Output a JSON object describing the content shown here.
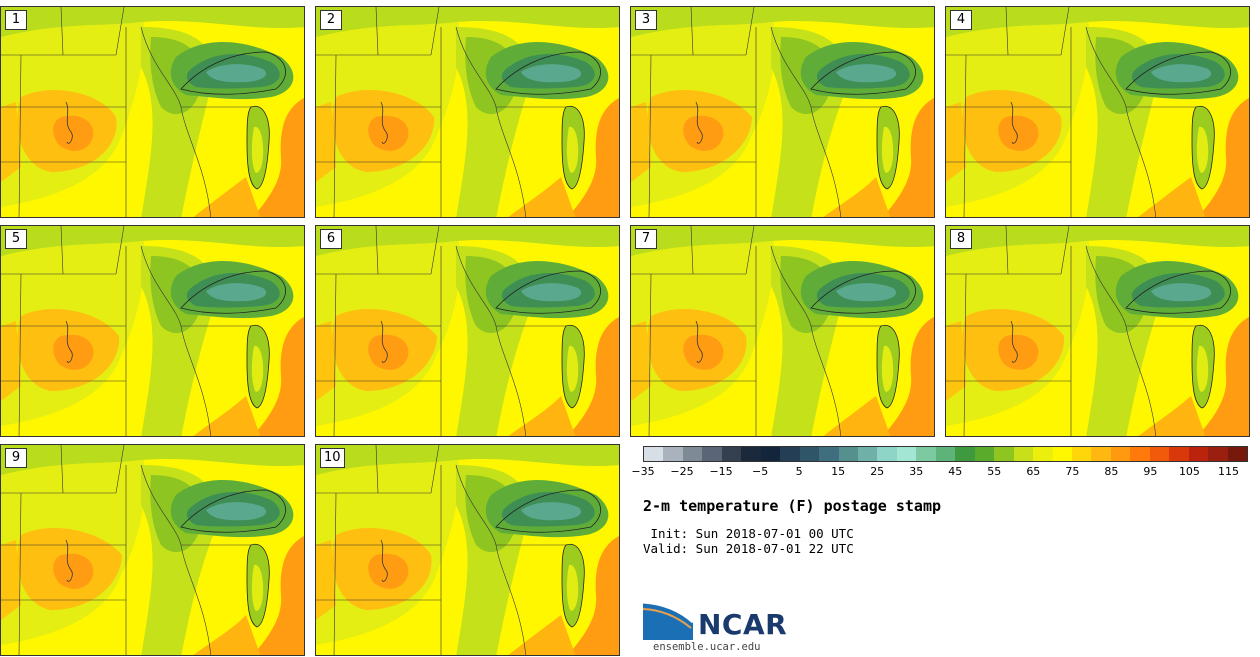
{
  "panels": [
    "1",
    "2",
    "3",
    "4",
    "5",
    "6",
    "7",
    "8",
    "9",
    "10"
  ],
  "colorbar": {
    "ticks": [
      "−35",
      "−25",
      "−15",
      "−5",
      "5",
      "15",
      "25",
      "35",
      "45",
      "55",
      "65",
      "75",
      "85",
      "95",
      "105",
      "115"
    ],
    "colors": [
      "#d8dee6",
      "#aab3bd",
      "#7f8a97",
      "#5a6677",
      "#34404f",
      "#1a2a3c",
      "#12253a",
      "#243e55",
      "#2f5568",
      "#3f6e7e",
      "#55908f",
      "#6fb0a8",
      "#8ed5c7",
      "#a3e6d4",
      "#7dcaa2",
      "#5db37a",
      "#3f9a3f",
      "#5aaa2c",
      "#8ec521",
      "#c8e01a",
      "#ecee0c",
      "#fff700",
      "#ffd60a",
      "#ffb80f",
      "#ff9a10",
      "#ff7a0a",
      "#f05a0a",
      "#d8380a",
      "#bb230c",
      "#992010",
      "#77180c"
    ]
  },
  "title": "2-m temperature (F) postage stamp",
  "init": " Init: Sun 2018-07-01 00 UTC",
  "valid": "Valid: Sun 2018-07-01 22 UTC",
  "logo": {
    "name": "NCAR",
    "url": "ensemble.ucar.edu"
  }
}
